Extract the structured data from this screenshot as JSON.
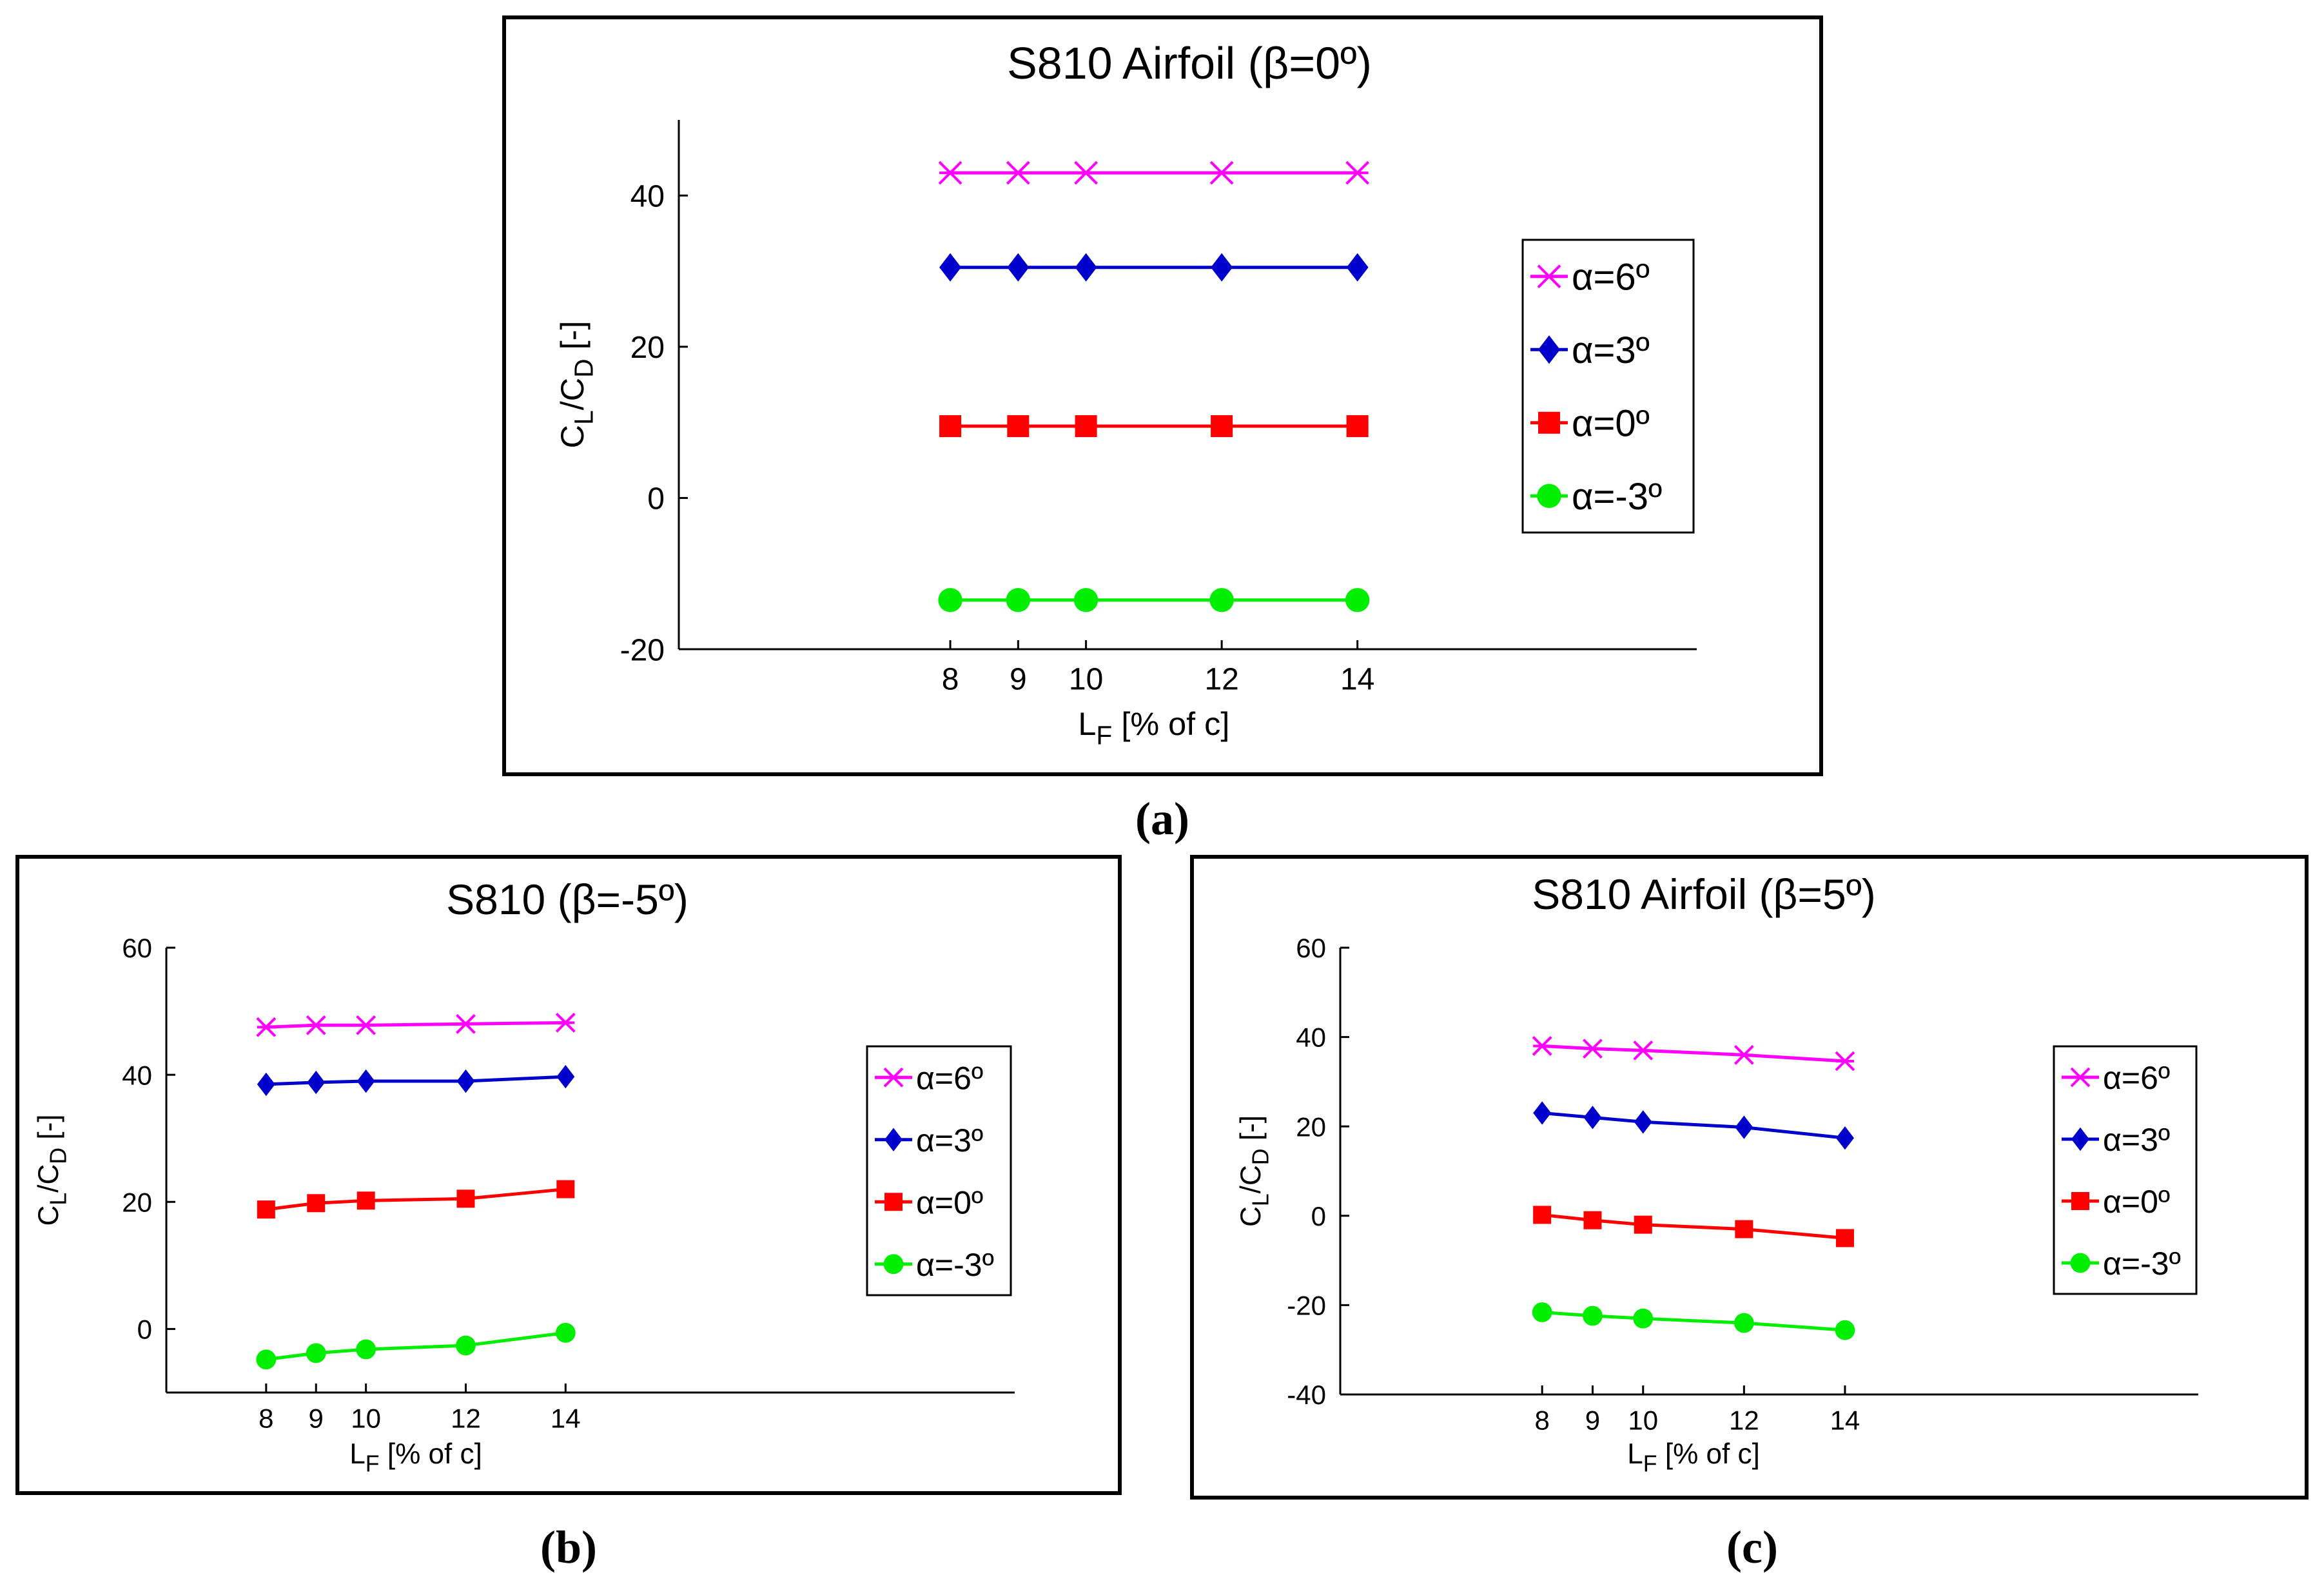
{
  "colors": {
    "pink": "#ff00ff",
    "blue": "#0000cc",
    "red": "#ff0000",
    "green": "#00ee00"
  },
  "chart_data": [
    {
      "id": "a",
      "type": "line",
      "caption": "(a)",
      "title": "S810 Airfoil (β=0º)",
      "xlabel": "L",
      "xlabel_sub": "F",
      "xlabel_rest": " [% of c]",
      "ylabel": "C",
      "ylabel_parts": [
        "C",
        "L",
        "/C",
        "D",
        " [-]"
      ],
      "x": [
        8,
        9,
        10,
        12,
        14
      ],
      "xlim": [
        4,
        19
      ],
      "ylim": [
        -20,
        50
      ],
      "yticks": [
        -20,
        0,
        20,
        40
      ],
      "series": [
        {
          "name": "α=6º",
          "marker": "x",
          "color": "#ff00ff",
          "values": [
            43,
            43,
            43,
            43,
            43
          ]
        },
        {
          "name": "α=3º",
          "marker": "diamond",
          "color": "#0000cc",
          "values": [
            30.5,
            30.5,
            30.5,
            30.5,
            30.5
          ]
        },
        {
          "name": "α=0º",
          "marker": "square",
          "color": "#ff0000",
          "values": [
            9.5,
            9.5,
            9.5,
            9.5,
            9.5
          ]
        },
        {
          "name": "α=-3º",
          "marker": "circle",
          "color": "#00ee00",
          "values": [
            -13.5,
            -13.5,
            -13.5,
            -13.5,
            -13.5
          ]
        }
      ]
    },
    {
      "id": "b",
      "type": "line",
      "caption": "(b)",
      "title": "S810 (β=-5º)",
      "xlabel": "L",
      "xlabel_sub": "F",
      "xlabel_rest": " [% of c]",
      "ylabel": "C",
      "ylabel_parts": [
        "C",
        "L",
        "/C",
        "D",
        " [-]"
      ],
      "x": [
        8,
        9,
        10,
        12,
        14
      ],
      "xlim": [
        6,
        23
      ],
      "ylim": [
        -10,
        60
      ],
      "yticks": [
        0,
        20,
        40,
        60
      ],
      "series": [
        {
          "name": "α=6º",
          "marker": "x",
          "color": "#ff00ff",
          "values": [
            47.5,
            47.8,
            47.8,
            48,
            48.2
          ]
        },
        {
          "name": "α=3º",
          "marker": "diamond",
          "color": "#0000cc",
          "values": [
            38.5,
            38.8,
            39,
            39,
            39.7
          ]
        },
        {
          "name": "α=0º",
          "marker": "square",
          "color": "#ff0000",
          "values": [
            18.8,
            19.8,
            20.2,
            20.5,
            22
          ]
        },
        {
          "name": "α=-3º",
          "marker": "circle",
          "color": "#00ee00",
          "values": [
            -4.8,
            -3.8,
            -3.2,
            -2.6,
            -0.6
          ]
        }
      ]
    },
    {
      "id": "c",
      "type": "line",
      "caption": "(c)",
      "title": "S810 Airfoil (β=5º)",
      "xlabel": "L",
      "xlabel_sub": "F",
      "xlabel_rest": " [% of c]",
      "ylabel": "C",
      "ylabel_parts": [
        "C",
        "L",
        "/C",
        "D",
        " [-]"
      ],
      "x": [
        8,
        9,
        10,
        12,
        14
      ],
      "xlim": [
        4,
        21
      ],
      "ylim": [
        -40,
        60
      ],
      "yticks": [
        -40,
        -20,
        0,
        20,
        40,
        60
      ],
      "series": [
        {
          "name": "α=6º",
          "marker": "x",
          "color": "#ff00ff",
          "values": [
            38,
            37.4,
            37,
            36,
            34.6
          ]
        },
        {
          "name": "α=3º",
          "marker": "diamond",
          "color": "#0000cc",
          "values": [
            23,
            22,
            21,
            19.8,
            17.4
          ]
        },
        {
          "name": "α=0º",
          "marker": "square",
          "color": "#ff0000",
          "values": [
            0.2,
            -1,
            -2,
            -3,
            -5
          ]
        },
        {
          "name": "α=-3º",
          "marker": "circle",
          "color": "#00ee00",
          "values": [
            -21.6,
            -22.4,
            -23,
            -24,
            -25.6
          ]
        }
      ]
    }
  ]
}
